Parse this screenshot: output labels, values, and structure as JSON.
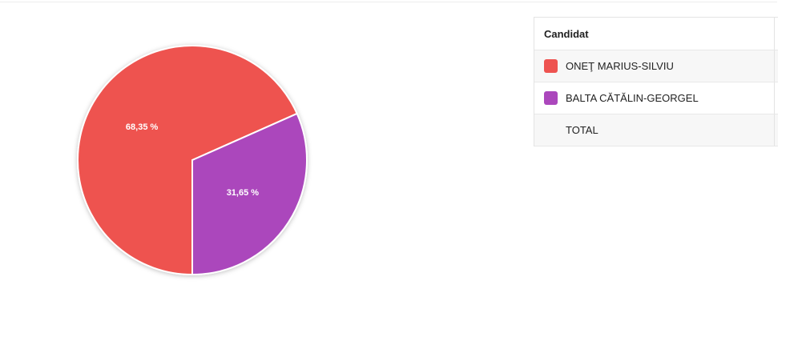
{
  "chart_data": {
    "type": "pie",
    "categories": [
      "ONEŢ MARIUS-SILVIU",
      "BALTA CĂTĂLIN-GEORGEL"
    ],
    "values": [
      68.35,
      31.65
    ],
    "value_labels": [
      "68,35 %",
      "31,65 %"
    ],
    "colors": [
      "#ee5350",
      "#ab47bc"
    ]
  },
  "table": {
    "header": "Candidat",
    "total": "TOTAL"
  }
}
